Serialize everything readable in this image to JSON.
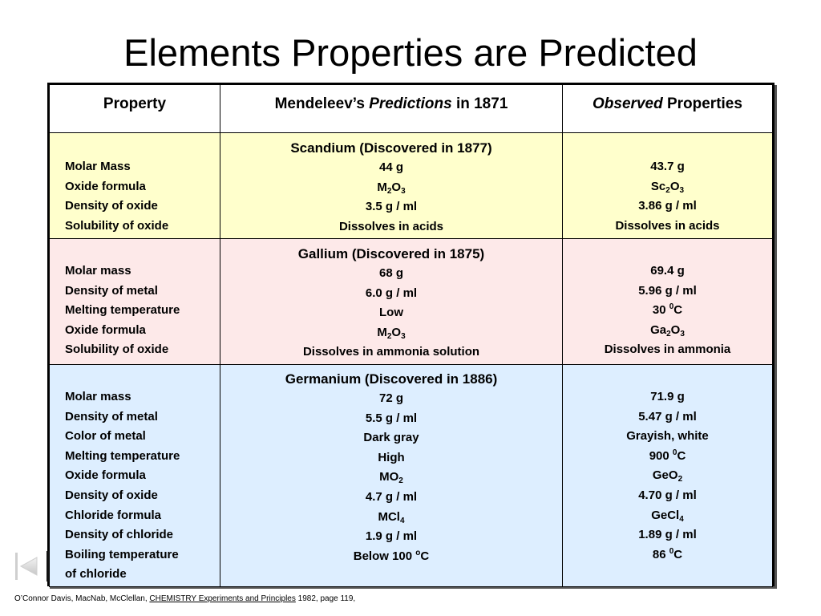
{
  "title": "Elements Properties are Predicted",
  "table": {
    "headers": {
      "property": "Property",
      "predictions_pre": "Mendeleev’s ",
      "predictions_em": "Predictions",
      "predictions_post": " in 1871",
      "observed_em": "Observed",
      "observed_post": " Properties"
    },
    "rows": {
      "scandium": {
        "name": "Scandium (Discovered in 1877)",
        "properties": [
          "Molar Mass",
          "Oxide formula",
          "Density of oxide",
          "Solubility of oxide"
        ],
        "predicted": {
          "molar_mass": "44 g",
          "oxide_a": "M",
          "oxide_a_sub": "2",
          "oxide_b": "O",
          "oxide_b_sub": "3",
          "density_oxide": "3.5 g / ml",
          "solubility": "Dissolves in acids"
        },
        "observed": {
          "molar_mass": "43.7 g",
          "oxide_a": "Sc",
          "oxide_a_sub": "2",
          "oxide_b": "O",
          "oxide_b_sub": "3",
          "density_oxide": "3.86 g / ml",
          "solubility": "Dissolves in acids"
        }
      },
      "gallium": {
        "name": "Gallium (Discovered in 1875)",
        "properties": [
          "Molar mass",
          "Density of metal",
          "Melting temperature",
          "Oxide formula",
          "Solubility of oxide"
        ],
        "predicted": {
          "molar_mass": "68 g",
          "density_metal": "6.0 g / ml",
          "melting": "Low",
          "oxide_a": "M",
          "oxide_a_sub": "2",
          "oxide_b": "O",
          "oxide_b_sub": "3",
          "solubility": "Dissolves in ammonia solution"
        },
        "observed": {
          "molar_mass": "69.4 g",
          "density_metal": "5.96 g / ml",
          "melting_value": "30 ",
          "melting_sup": "0",
          "melting_unit": "C",
          "oxide_a": "Ga",
          "oxide_a_sub": "2",
          "oxide_b": "O",
          "oxide_b_sub": "3",
          "solubility": "Dissolves in ammonia"
        }
      },
      "germanium": {
        "name": "Germanium (Discovered in 1886)",
        "properties": [
          "Molar mass",
          "Density of metal",
          "Color of metal",
          "Melting temperature",
          "Oxide formula",
          "Density of oxide",
          "Chloride formula",
          "Density of chloride",
          "Boiling temperature",
          "of chloride"
        ],
        "predicted": {
          "molar_mass": "72 g",
          "density_metal": "5.5 g / ml",
          "color": "Dark gray",
          "melting": "High",
          "oxide_a": "MO",
          "oxide_a_sub": "2",
          "density_oxide": "4.7 g / ml",
          "chloride_a": "MCl",
          "chloride_a_sub": "4",
          "density_chloride": "1.9 g / ml",
          "boiling_value": "Below 100 ",
          "boiling_sup": "o",
          "boiling_unit": "C"
        },
        "observed": {
          "molar_mass": "71.9 g",
          "density_metal": "5.47 g / ml",
          "color": "Grayish, white",
          "melting_value": "900 ",
          "melting_sup": "0",
          "melting_unit": "C",
          "oxide_a": "GeO",
          "oxide_a_sub": "2",
          "density_oxide": "4.70 g / ml",
          "chloride_a": "GeCl",
          "chloride_a_sub": "4",
          "density_chloride": "1.89 g / ml",
          "boiling_value": "86 ",
          "boiling_sup": "0",
          "boiling_unit": "C"
        }
      }
    }
  },
  "footer": {
    "authors": "O’Connor Davis, MacNab, McClellan,  ",
    "book": "CHEMISTRY Experiments and Principles",
    "details": " 1982, page 119,"
  },
  "nav": {
    "icon": "first-slide-icon"
  }
}
